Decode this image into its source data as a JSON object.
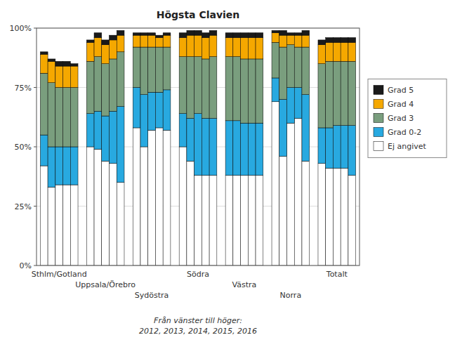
{
  "chart_data": {
    "type": "bar",
    "stacked": true,
    "title": "Högsta Clavien",
    "subtitle": "Från vänster till höger:\n2012, 2013, 2014, 2015, 2016",
    "categories": [
      null,
      null,
      "Sthlm/Gotland",
      null,
      null,
      null,
      null,
      "Uppsala/Örebro",
      null,
      null,
      null,
      null,
      "Sydöstra",
      null,
      null,
      null,
      null,
      "Södra",
      null,
      null,
      null,
      null,
      "Västra",
      null,
      null,
      null,
      null,
      "Norra",
      null,
      null,
      null,
      null,
      "Totalt",
      null,
      null
    ],
    "series": [
      {
        "name": "Ej angivet",
        "color": "#ffffff",
        "values": [
          42,
          33,
          34,
          34,
          34,
          50,
          49,
          44,
          43,
          35,
          58,
          50,
          57,
          58,
          57,
          50,
          44,
          38,
          38,
          38,
          38,
          38,
          38,
          38,
          38,
          69,
          46,
          60,
          62,
          44,
          43,
          41,
          41,
          41,
          38
        ]
      },
      {
        "name": "Grad 0-2",
        "color": "#28a9e0",
        "values": [
          13,
          17,
          16,
          16,
          16,
          14,
          16,
          19,
          22,
          32,
          17,
          22,
          16,
          15,
          17,
          14,
          18,
          26,
          24,
          24,
          23,
          23,
          22,
          22,
          22,
          10,
          24,
          15,
          13,
          28,
          15,
          17,
          18,
          18,
          21
        ]
      },
      {
        "name": "Grad 3",
        "color": "#7a9e7e",
        "values": [
          26,
          27,
          25,
          25,
          25,
          22,
          23,
          22,
          22,
          23,
          17,
          20,
          19,
          19,
          18,
          24,
          26,
          24,
          25,
          26,
          27,
          27,
          27,
          27,
          27,
          15,
          22,
          18,
          17,
          20,
          27,
          28,
          27,
          27,
          27
        ]
      },
      {
        "name": "Grad 4",
        "color": "#f5a800",
        "values": [
          8,
          9,
          9,
          9,
          9,
          8,
          8,
          8,
          8,
          7,
          5,
          5,
          5,
          4,
          5,
          8,
          9,
          9,
          9,
          9,
          8,
          8,
          9,
          9,
          9,
          4,
          5,
          4,
          5,
          5,
          8,
          8,
          8,
          8,
          8
        ]
      },
      {
        "name": "Grad 5",
        "color": "#1a1a1a",
        "values": [
          1,
          1,
          2,
          2,
          1,
          1,
          2,
          2,
          2,
          2,
          1,
          1,
          1,
          1,
          1,
          2,
          2,
          2,
          2,
          2,
          2,
          2,
          2,
          2,
          2,
          1,
          2,
          1,
          1,
          2,
          2,
          2,
          2,
          2,
          2
        ]
      }
    ],
    "ylim": [
      0,
      100
    ],
    "yticks": [
      {
        "value": 0,
        "label": "0%"
      },
      {
        "value": 25,
        "label": "25%"
      },
      {
        "value": 50,
        "label": "50%"
      },
      {
        "value": 75,
        "label": "75%"
      },
      {
        "value": 100,
        "label": "100%"
      }
    ],
    "grid": true,
    "legend": "right"
  }
}
